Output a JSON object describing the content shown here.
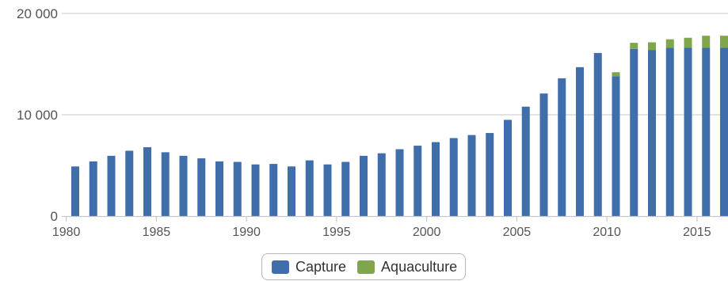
{
  "chart_data": {
    "type": "bar",
    "stacked": true,
    "title": "",
    "xlabel": "",
    "ylabel": "",
    "ylim": [
      0,
      20000
    ],
    "yticks": [
      0,
      10000,
      20000
    ],
    "ytick_labels": [
      "0",
      "10 000",
      "20 000"
    ],
    "xticks": [
      1980,
      1985,
      1990,
      1995,
      2000,
      2005,
      2010,
      2015
    ],
    "xtick_labels": [
      "1980",
      "1985",
      "1990",
      "1995",
      "2000",
      "2005",
      "2010",
      "2015"
    ],
    "grid": true,
    "legend_position": "bottom-center",
    "categories": [
      1980,
      1981,
      1982,
      1983,
      1984,
      1985,
      1986,
      1987,
      1988,
      1989,
      1990,
      1991,
      1992,
      1993,
      1994,
      1995,
      1996,
      1997,
      1998,
      1999,
      2000,
      2001,
      2002,
      2003,
      2004,
      2005,
      2006,
      2007,
      2008,
      2009,
      2010,
      2011,
      2012,
      2013,
      2014,
      2015,
      2016
    ],
    "series": [
      {
        "name": "Capture",
        "color": "#3f6eab",
        "values": [
          4900,
          5400,
          5950,
          6450,
          6800,
          6300,
          5950,
          5700,
          5400,
          5350,
          5100,
          5150,
          4900,
          5500,
          5100,
          5350,
          5950,
          6200,
          6600,
          6950,
          7300,
          7700,
          8000,
          8200,
          9500,
          10800,
          12100,
          13600,
          14700,
          16100,
          13800,
          16500,
          16400,
          16600,
          16600,
          16600,
          16600
        ]
      },
      {
        "name": "Aquaculture",
        "color": "#7fa64b",
        "values": [
          0,
          0,
          0,
          0,
          0,
          0,
          0,
          0,
          0,
          0,
          0,
          0,
          0,
          0,
          0,
          0,
          0,
          0,
          0,
          0,
          0,
          0,
          0,
          0,
          0,
          0,
          0,
          0,
          0,
          0,
          400,
          600,
          750,
          850,
          1000,
          1200,
          1200
        ]
      }
    ]
  }
}
